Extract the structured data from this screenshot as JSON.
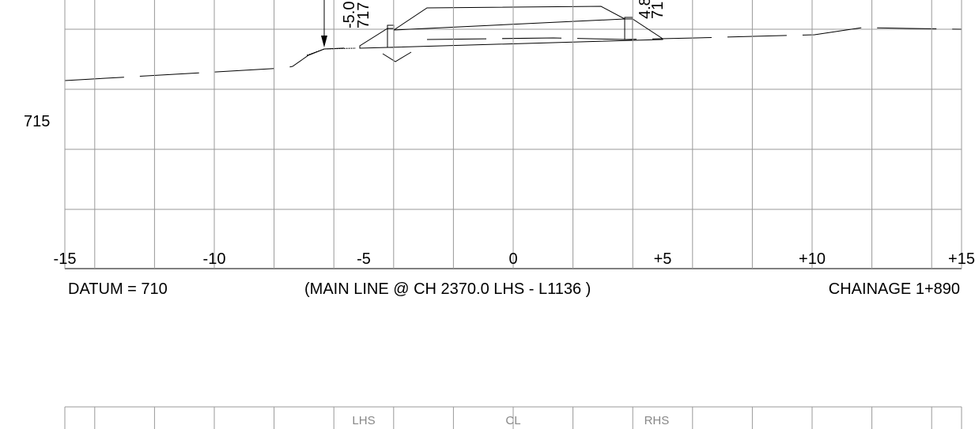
{
  "section": {
    "level_label": "715",
    "offset_labels": [
      "-15",
      "-10",
      "-5",
      "0",
      "+5",
      "+10",
      "+15"
    ],
    "datum": "DATUM = 710",
    "description": "(MAIN LINE @ CH 2370.0 LHS - L1136 )",
    "chainage": "CHAINAGE 1+890",
    "left_point": {
      "offset": "-5.0",
      "level": "717"
    },
    "right_point": {
      "offset": "4.8",
      "level": "71"
    },
    "band_labels": [
      "LHS",
      "CL",
      "RHS"
    ]
  }
}
